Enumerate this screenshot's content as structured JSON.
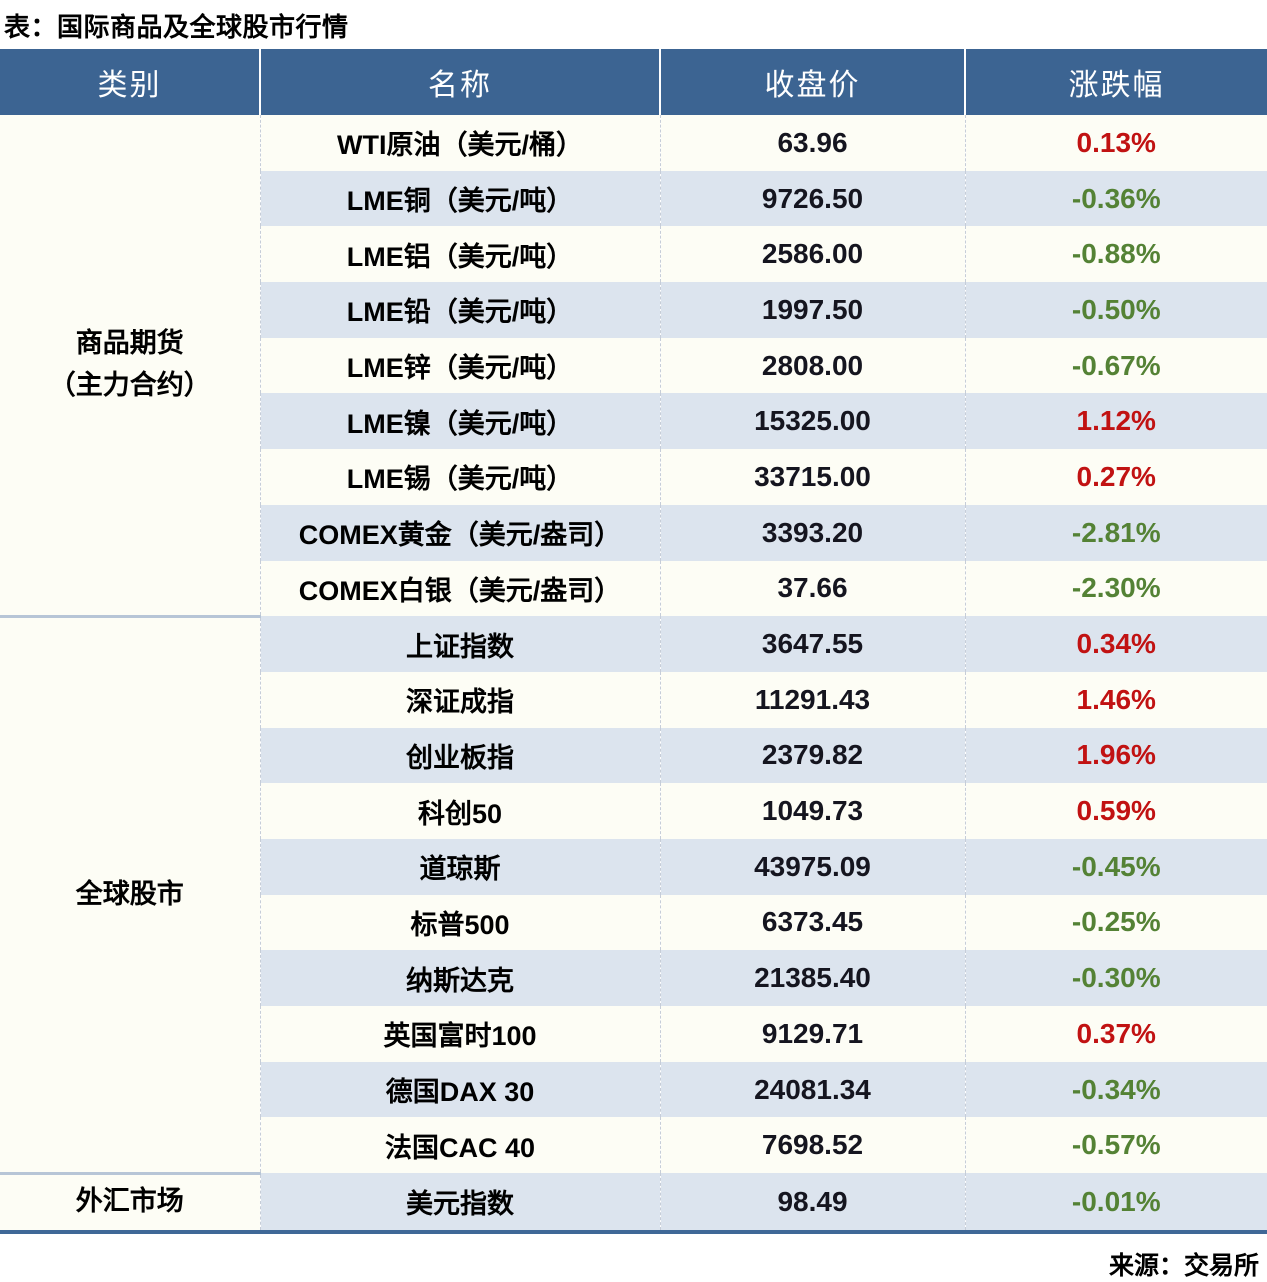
{
  "page_title": "表：国际商品及全球股市行情",
  "source_note": "来源：交易所",
  "colors": {
    "up_red": "#c11212",
    "down_green": "#548235",
    "header_bg": "#3c6492",
    "stripe_blue": "#dce4ee",
    "stripe_white": "#fdfdf5",
    "bottom_border": "#3f6897"
  },
  "chart_data": {
    "type": "table",
    "title": "表：国际商品及全球股市行情",
    "columns": [
      "类别",
      "名称",
      "收盘价",
      "涨跌幅"
    ],
    "groups": [
      {
        "category_lines": [
          "商品期货",
          "（主力合约）"
        ],
        "rows": [
          {
            "name": "WTI原油（美元/桶）",
            "close": "63.96",
            "change": "0.13%",
            "dir": "up"
          },
          {
            "name": "LME铜（美元/吨）",
            "close": "9726.50",
            "change": "-0.36%",
            "dir": "down"
          },
          {
            "name": "LME铝（美元/吨）",
            "close": "2586.00",
            "change": "-0.88%",
            "dir": "down"
          },
          {
            "name": "LME铅（美元/吨）",
            "close": "1997.50",
            "change": "-0.50%",
            "dir": "down"
          },
          {
            "name": "LME锌（美元/吨）",
            "close": "2808.00",
            "change": "-0.67%",
            "dir": "down"
          },
          {
            "name": "LME镍（美元/吨）",
            "close": "15325.00",
            "change": "1.12%",
            "dir": "up"
          },
          {
            "name": "LME锡（美元/吨）",
            "close": "33715.00",
            "change": "0.27%",
            "dir": "up"
          },
          {
            "name": "COMEX黄金（美元/盎司）",
            "close": "3393.20",
            "change": "-2.81%",
            "dir": "down"
          },
          {
            "name": "COMEX白银（美元/盎司）",
            "close": "37.66",
            "change": "-2.30%",
            "dir": "down"
          }
        ]
      },
      {
        "category_lines": [
          "全球股市"
        ],
        "rows": [
          {
            "name": "上证指数",
            "close": "3647.55",
            "change": "0.34%",
            "dir": "up"
          },
          {
            "name": "深证成指",
            "close": "11291.43",
            "change": "1.46%",
            "dir": "up"
          },
          {
            "name": "创业板指",
            "close": "2379.82",
            "change": "1.96%",
            "dir": "up"
          },
          {
            "name": "科创50",
            "close": "1049.73",
            "change": "0.59%",
            "dir": "up"
          },
          {
            "name": "道琼斯",
            "close": "43975.09",
            "change": "-0.45%",
            "dir": "down"
          },
          {
            "name": "标普500",
            "close": "6373.45",
            "change": "-0.25%",
            "dir": "down"
          },
          {
            "name": "纳斯达克",
            "close": "21385.40",
            "change": "-0.30%",
            "dir": "down"
          },
          {
            "name": "英国富时100",
            "close": "9129.71",
            "change": "0.37%",
            "dir": "up"
          },
          {
            "name": "德国DAX 30",
            "close": "24081.34",
            "change": "-0.34%",
            "dir": "down"
          },
          {
            "name": "法国CAC 40",
            "close": "7698.52",
            "change": "-0.57%",
            "dir": "down"
          }
        ]
      },
      {
        "category_lines": [
          "外汇市场"
        ],
        "rows": [
          {
            "name": "美元指数",
            "close": "98.49",
            "change": "-0.01%",
            "dir": "down"
          }
        ]
      }
    ],
    "source": "来源：交易所"
  }
}
